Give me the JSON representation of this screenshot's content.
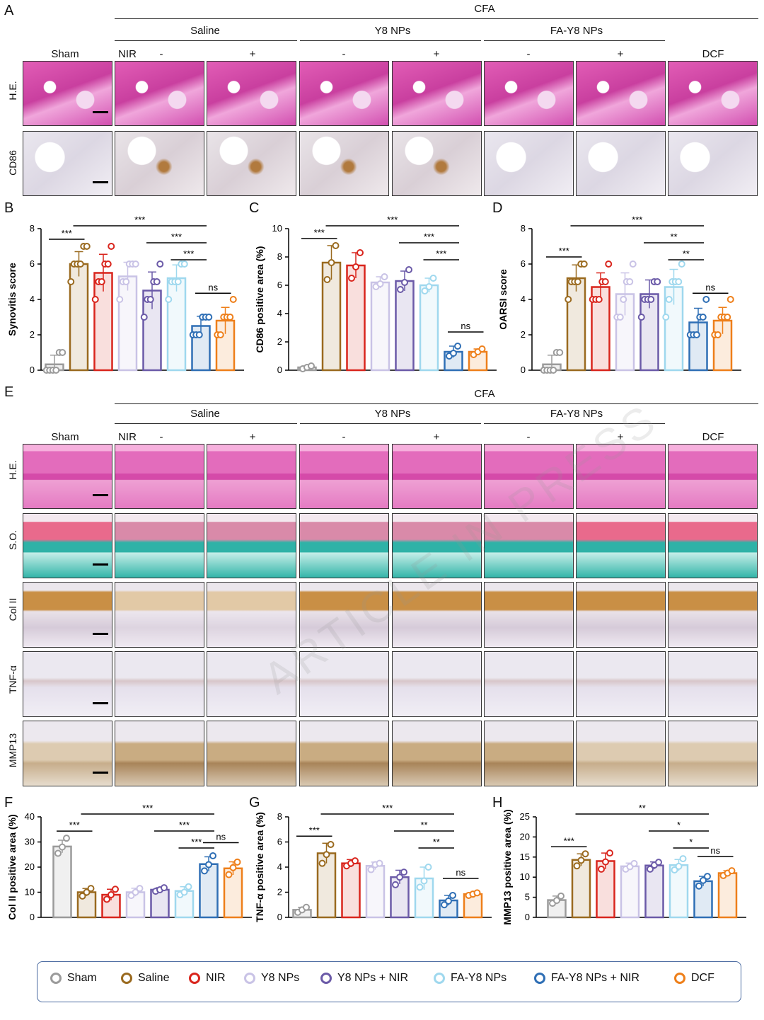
{
  "panels": {
    "A": "A",
    "B": "B",
    "C": "C",
    "D": "D",
    "E": "E",
    "F": "F",
    "G": "G",
    "H": "H"
  },
  "headers": {
    "cfa": "CFA",
    "saline": "Saline",
    "y8": "Y8 NPs",
    "fay8": "FA-Y8 NPs",
    "sham": "Sham",
    "nir": "NIR",
    "minus": "-",
    "plus": "+",
    "dcf": "DCF"
  },
  "rows_top": [
    "H.E.",
    "CD86"
  ],
  "rows_bottom": [
    "H.E.",
    "S.O.",
    "Col II",
    "TNF-α",
    "MMP13"
  ],
  "watermark": "ARTICLE IN PRESS",
  "colors": {
    "Sham": "#9b9b9b",
    "Saline": "#9a6a1f",
    "NIR": "#d9251d",
    "Y8 NPs": "#c9c3e6",
    "Y8 NPs + NIR": "#6b5aa8",
    "FA-Y8 NPs": "#9fd8ee",
    "FA-Y8 NPs + NIR": "#2f6fb5",
    "DCF": "#ee7f1a"
  },
  "legend": [
    "Sham",
    "Saline",
    "NIR",
    "Y8 NPs",
    "Y8 NPs + NIR",
    "FA-Y8 NPs",
    "FA-Y8 NPs + NIR",
    "DCF"
  ],
  "chart_data": [
    {
      "id": "B",
      "type": "bar",
      "ylabel": "Synovitis score",
      "ylim": [
        0,
        8
      ],
      "yticks": [
        0,
        2,
        4,
        6,
        8
      ],
      "categories": [
        "Sham",
        "Saline",
        "NIR",
        "Y8 NPs",
        "Y8 NPs + NIR",
        "FA-Y8 NPs",
        "FA-Y8 NPs + NIR",
        "DCF"
      ],
      "values": [
        0.33,
        6.0,
        5.5,
        5.3,
        4.5,
        5.2,
        2.5,
        2.8
      ],
      "errors": [
        0.52,
        0.7,
        1.05,
        0.8,
        1.05,
        0.75,
        0.55,
        0.75
      ],
      "points": [
        [
          0,
          0,
          0,
          0,
          1,
          1
        ],
        [
          5,
          6,
          6,
          6,
          7,
          7
        ],
        [
          4,
          5,
          5,
          6,
          6,
          7
        ],
        [
          4,
          5,
          5,
          6,
          6,
          6
        ],
        [
          3,
          4,
          4,
          5,
          5,
          6
        ],
        [
          4,
          5,
          5,
          5,
          6,
          6
        ],
        [
          2,
          2,
          2,
          3,
          3,
          3
        ],
        [
          2,
          2,
          3,
          3,
          3,
          4
        ]
      ],
      "sig": [
        {
          "from": 0,
          "to": 1,
          "label": "***",
          "level": 0
        },
        {
          "from": 1,
          "to": 6,
          "label": "***",
          "level": 3
        },
        {
          "from": 4,
          "to": 6,
          "label": "***",
          "level": 2
        },
        {
          "from": 5,
          "to": 6,
          "label": "***",
          "level": 1
        },
        {
          "from": 6,
          "to": 7,
          "label": "ns",
          "level": 0
        }
      ]
    },
    {
      "id": "C",
      "type": "bar",
      "ylabel": "CD86 positive area (%)",
      "ylim": [
        0,
        10
      ],
      "yticks": [
        0,
        2,
        4,
        6,
        8,
        10
      ],
      "categories": [
        "Sham",
        "Saline",
        "NIR",
        "Y8 NPs",
        "Y8 NPs + NIR",
        "FA-Y8 NPs",
        "FA-Y8 NPs + NIR",
        "DCF"
      ],
      "values": [
        0.2,
        7.6,
        7.4,
        6.2,
        6.3,
        6.0,
        1.3,
        1.3
      ],
      "errors": [
        0.1,
        1.2,
        0.9,
        0.4,
        0.7,
        0.5,
        0.4,
        0.2
      ],
      "points": [
        [
          0.1,
          0.2,
          0.3
        ],
        [
          6.4,
          7.6,
          8.8
        ],
        [
          6.5,
          7.3,
          8.3
        ],
        [
          5.9,
          6.1,
          6.6
        ],
        [
          5.7,
          6.2,
          7.1
        ],
        [
          5.6,
          5.9,
          6.5
        ],
        [
          1.0,
          1.2,
          1.7
        ],
        [
          1.1,
          1.3,
          1.5
        ]
      ],
      "sig": [
        {
          "from": 0,
          "to": 1,
          "label": "***",
          "level": 0
        },
        {
          "from": 1,
          "to": 6,
          "label": "***",
          "level": 3
        },
        {
          "from": 4,
          "to": 6,
          "label": "***",
          "level": 2
        },
        {
          "from": 5,
          "to": 6,
          "label": "***",
          "level": 1
        },
        {
          "from": 6,
          "to": 7,
          "label": "ns",
          "level": 0
        }
      ]
    },
    {
      "id": "D",
      "type": "bar",
      "ylabel": "OARSI score",
      "ylim": [
        0,
        8
      ],
      "yticks": [
        0,
        2,
        4,
        6,
        8
      ],
      "categories": [
        "Sham",
        "Saline",
        "NIR",
        "Y8 NPs",
        "Y8 NPs + NIR",
        "FA-Y8 NPs",
        "FA-Y8 NPs + NIR",
        "DCF"
      ],
      "values": [
        0.33,
        5.2,
        4.7,
        4.3,
        4.3,
        4.7,
        2.7,
        2.8
      ],
      "errors": [
        0.52,
        0.75,
        0.8,
        1.2,
        0.8,
        1.0,
        0.8,
        0.75
      ],
      "points": [
        [
          0,
          0,
          0,
          0,
          1,
          1
        ],
        [
          4,
          5,
          5,
          5,
          6,
          6
        ],
        [
          4,
          4,
          4,
          5,
          5,
          6
        ],
        [
          3,
          3,
          4,
          5,
          5,
          6
        ],
        [
          3,
          4,
          4,
          4,
          5,
          5
        ],
        [
          3,
          4,
          5,
          5,
          5,
          6
        ],
        [
          2,
          2,
          2,
          3,
          3,
          4
        ],
        [
          2,
          2,
          3,
          3,
          3,
          4
        ]
      ],
      "sig": [
        {
          "from": 0,
          "to": 1,
          "label": "***",
          "level": 0
        },
        {
          "from": 1,
          "to": 6,
          "label": "***",
          "level": 3
        },
        {
          "from": 4,
          "to": 6,
          "label": "**",
          "level": 2
        },
        {
          "from": 5,
          "to": 6,
          "label": "**",
          "level": 1
        },
        {
          "from": 6,
          "to": 7,
          "label": "ns",
          "level": 0
        }
      ]
    },
    {
      "id": "F",
      "type": "bar",
      "ylabel": "Col II positive area (%)",
      "ylim": [
        0,
        40
      ],
      "yticks": [
        0,
        10,
        20,
        30,
        40
      ],
      "categories": [
        "Sham",
        "Saline",
        "NIR",
        "Y8 NPs",
        "Y8 NPs + NIR",
        "FA-Y8 NPs",
        "FA-Y8 NPs + NIR",
        "DCF"
      ],
      "values": [
        28.2,
        10.0,
        9.0,
        10.0,
        11.0,
        10.5,
        21.2,
        19.5
      ],
      "errors": [
        2.5,
        1.5,
        2.2,
        1.6,
        0.8,
        1.7,
        2.9,
        2.6
      ],
      "points": [
        [
          25.5,
          28.0,
          31.5
        ],
        [
          8.5,
          10.0,
          11.5
        ],
        [
          7.2,
          9.0,
          11.2
        ],
        [
          8.7,
          10.0,
          11.5
        ],
        [
          10.4,
          11.0,
          11.8
        ],
        [
          9.0,
          10.0,
          12.2
        ],
        [
          18.5,
          21.0,
          24.5
        ],
        [
          17.0,
          19.8,
          22.0
        ]
      ],
      "sig": [
        {
          "from": 0,
          "to": 1,
          "label": "***",
          "level": 0
        },
        {
          "from": 1,
          "to": 6,
          "label": "***",
          "level": 3
        },
        {
          "from": 4,
          "to": 6,
          "label": "***",
          "level": 2
        },
        {
          "from": 5,
          "to": 6,
          "label": "***",
          "level": 1
        },
        {
          "from": 6,
          "to": 7,
          "label": "ns",
          "level": 0
        }
      ]
    },
    {
      "id": "G",
      "type": "bar",
      "ylabel": "TNF-α positive area (%)",
      "ylim": [
        0,
        8
      ],
      "yticks": [
        0,
        2,
        4,
        6,
        8
      ],
      "categories": [
        "Sham",
        "Saline",
        "NIR",
        "Y8 NPs",
        "Y8 NPs + NIR",
        "FA-Y8 NPs",
        "FA-Y8 NPs + NIR",
        "DCF"
      ],
      "values": [
        0.6,
        5.1,
        4.3,
        4.1,
        3.2,
        3.1,
        1.35,
        1.85
      ],
      "errors": [
        0.2,
        0.8,
        0.3,
        0.3,
        0.55,
        0.9,
        0.4,
        0.12
      ],
      "points": [
        [
          0.4,
          0.6,
          0.8
        ],
        [
          4.3,
          5.0,
          5.8
        ],
        [
          4.1,
          4.3,
          4.5
        ],
        [
          3.8,
          4.2,
          4.3
        ],
        [
          2.6,
          3.2,
          3.6
        ],
        [
          2.4,
          2.9,
          4.0
        ],
        [
          1.0,
          1.3,
          1.75
        ],
        [
          1.75,
          1.85,
          1.95
        ]
      ],
      "sig": [
        {
          "from": 0,
          "to": 1,
          "label": "***",
          "level": 0
        },
        {
          "from": 1,
          "to": 6,
          "label": "***",
          "level": 3
        },
        {
          "from": 4,
          "to": 6,
          "label": "**",
          "level": 2
        },
        {
          "from": 5,
          "to": 6,
          "label": "**",
          "level": 1
        },
        {
          "from": 6,
          "to": 7,
          "label": "ns",
          "level": 0
        }
      ]
    },
    {
      "id": "H",
      "type": "bar",
      "ylabel": "MMP13 positive area (%)",
      "ylim": [
        0,
        25
      ],
      "yticks": [
        0,
        5,
        10,
        15,
        20,
        25
      ],
      "categories": [
        "Sham",
        "Saline",
        "NIR",
        "Y8 NPs",
        "Y8 NPs + NIR",
        "FA-Y8 NPs",
        "FA-Y8 NPs + NIR",
        "DCF"
      ],
      "values": [
        4.3,
        14.3,
        14.0,
        12.7,
        12.9,
        13.0,
        9.0,
        11.0
      ],
      "errors": [
        1.0,
        1.5,
        2.0,
        0.8,
        0.9,
        1.4,
        1.2,
        0.6
      ],
      "points": [
        [
          3.5,
          4.2,
          5.3
        ],
        [
          12.8,
          14.2,
          15.8
        ],
        [
          12.0,
          13.8,
          16.0
        ],
        [
          12.0,
          12.6,
          13.4
        ],
        [
          12.0,
          13.0,
          13.7
        ],
        [
          11.8,
          12.7,
          14.6
        ],
        [
          7.8,
          9.2,
          10.2
        ],
        [
          10.4,
          11.0,
          11.6
        ]
      ],
      "sig": [
        {
          "from": 0,
          "to": 1,
          "label": "***",
          "level": 0
        },
        {
          "from": 1,
          "to": 6,
          "label": "**",
          "level": 3
        },
        {
          "from": 4,
          "to": 6,
          "label": "*",
          "level": 2
        },
        {
          "from": 5,
          "to": 6,
          "label": "*",
          "level": 1
        },
        {
          "from": 6,
          "to": 7,
          "label": "ns",
          "level": 0
        }
      ]
    }
  ]
}
